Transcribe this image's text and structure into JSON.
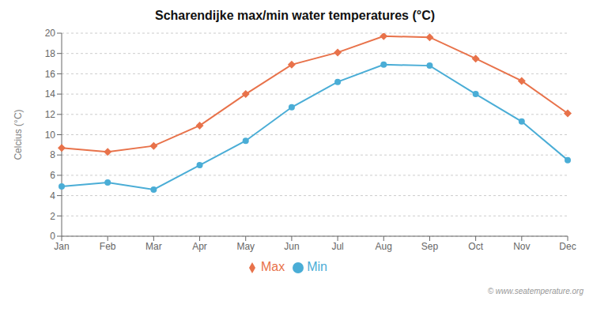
{
  "chart_data": {
    "type": "line",
    "title": "Scharendijke max/min water temperatures (°C)",
    "ylabel": "Celcius (°C)",
    "categories": [
      "Jan",
      "Feb",
      "Mar",
      "Apr",
      "May",
      "Jun",
      "Jul",
      "Aug",
      "Sep",
      "Oct",
      "Nov",
      "Dec"
    ],
    "series": [
      {
        "name": "Max",
        "color": "#e8724a",
        "marker": "diamond",
        "values": [
          8.7,
          8.3,
          8.9,
          10.9,
          14.0,
          16.9,
          18.1,
          19.7,
          19.6,
          17.5,
          15.3,
          12.1
        ]
      },
      {
        "name": "Min",
        "color": "#4aadd6",
        "marker": "circle",
        "values": [
          4.9,
          5.3,
          4.6,
          7.0,
          9.4,
          12.7,
          15.2,
          16.9,
          16.8,
          14.0,
          11.3,
          7.5
        ]
      }
    ],
    "ylim": [
      0,
      20
    ],
    "yticks": [
      0,
      2,
      4,
      6,
      8,
      10,
      12,
      14,
      16,
      18,
      20
    ],
    "grid": true,
    "legend": "bottom",
    "annotations": [
      "© www.seatemperature.org"
    ]
  }
}
